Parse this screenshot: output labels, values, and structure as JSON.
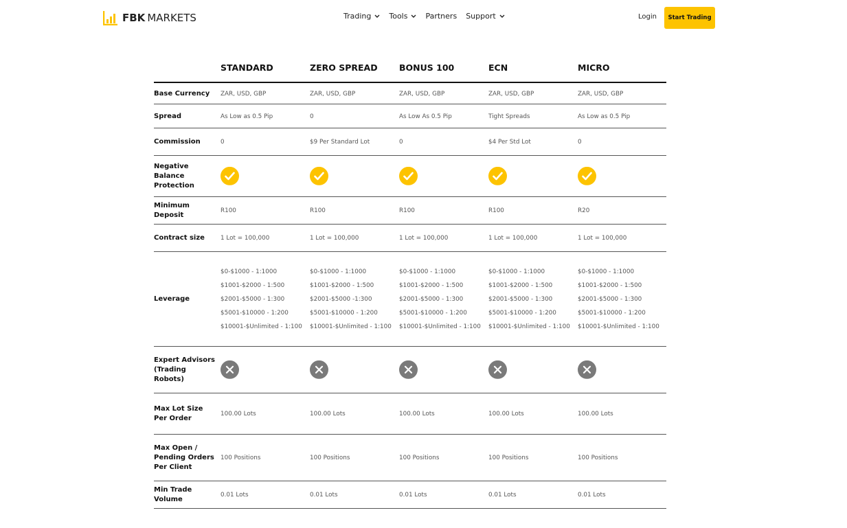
{
  "header": {
    "logo_bold": "FBK",
    "logo_light": "MARKETS",
    "nav": [
      "Trading",
      "Tools",
      "Partners",
      "Support"
    ],
    "login": "Login",
    "cta": "Start Trading"
  },
  "table": {
    "columns": [
      "STANDARD",
      "ZERO SPREAD",
      "BONUS 100",
      "ECN",
      "MICRO"
    ],
    "rows": [
      {
        "label": "Base Currency",
        "cells": [
          "ZAR, USD, GBP",
          "ZAR, USD, GBP",
          "ZAR, USD, GBP",
          "ZAR, USD, GBP",
          "ZAR, USD, GBP"
        ]
      },
      {
        "label": "Spread",
        "cells": [
          "As Low as 0.5 Pip",
          "0",
          "As Low As 0.5 Pip",
          "Tight Spreads",
          "As Low as 0.5 Pip"
        ]
      },
      {
        "label": "Commission",
        "cells": [
          "0",
          "$9 Per Standard Lot",
          "0",
          "$4 Per Std Lot",
          "0"
        ]
      },
      {
        "label": "Negative Balance Protection",
        "cells": [
          true,
          true,
          true,
          true,
          true
        ]
      },
      {
        "label": "Minimum Deposit",
        "cells": [
          "R100",
          "R100",
          "R100",
          "R100",
          "R20"
        ]
      },
      {
        "label": "Contract size",
        "cells": [
          "1 Lot = 100,000",
          "1 Lot = 100,000",
          "1 Lot = 100,000",
          "1 Lot = 100,000",
          "1 Lot = 100,000"
        ]
      },
      {
        "label": "Leverage",
        "cells": [
          [
            "$0-$1000 - 1:1000",
            "$1001-$2000 - 1:500",
            "$2001-$5000 - 1:300",
            "$5001-$10000 - 1:200",
            "$10001-$Unlimited - 1:100"
          ],
          [
            "$0-$1000 - 1:1000",
            "$1001-$2000 - 1:500",
            "$2001-$5000 -1:300",
            "$5001-$10000 - 1:200",
            "$10001-$Unlimited - 1:100"
          ],
          [
            "$0-$1000 -  1:1000",
            "$1001-$2000 - 1:500",
            "$2001-$5000 - 1:300",
            "$5001-$10000 - 1:200",
            "$10001-$Unlimited - 1:100"
          ],
          [
            "$0-$1000 -  1:1000",
            "$1001-$2000 - 1:500",
            "$2001-$5000 - 1:300",
            "$5001-$10000 - 1:200",
            "$10001-$Unlimited - 1:100"
          ],
          [
            "$0-$1000 -  1:1000",
            "$1001-$2000 - 1:500",
            "$2001-$5000 - 1:300",
            "$5001-$10000 - 1:200",
            "$10001-$Unlimited - 1:100"
          ]
        ]
      },
      {
        "label": "Expert Advisors (Trading Robots)",
        "cells": [
          false,
          false,
          false,
          false,
          false
        ]
      },
      {
        "label": "Max Lot Size Per Order",
        "cells": [
          "100.00 Lots",
          "100.00 Lots",
          "100.00 Lots",
          "100.00 Lots",
          "100.00 Lots"
        ]
      },
      {
        "label": "Max Open / Pending Orders Per Client",
        "cells": [
          "100 Positions",
          "100 Positions",
          "100 Positions",
          "100 Positions",
          "100 Positions"
        ]
      },
      {
        "label": "Min Trade Volume",
        "cells": [
          "0.01 Lots",
          "0.01 Lots",
          "0.01 Lots",
          "0.01 Lots",
          "0.01 Lots"
        ]
      }
    ]
  }
}
